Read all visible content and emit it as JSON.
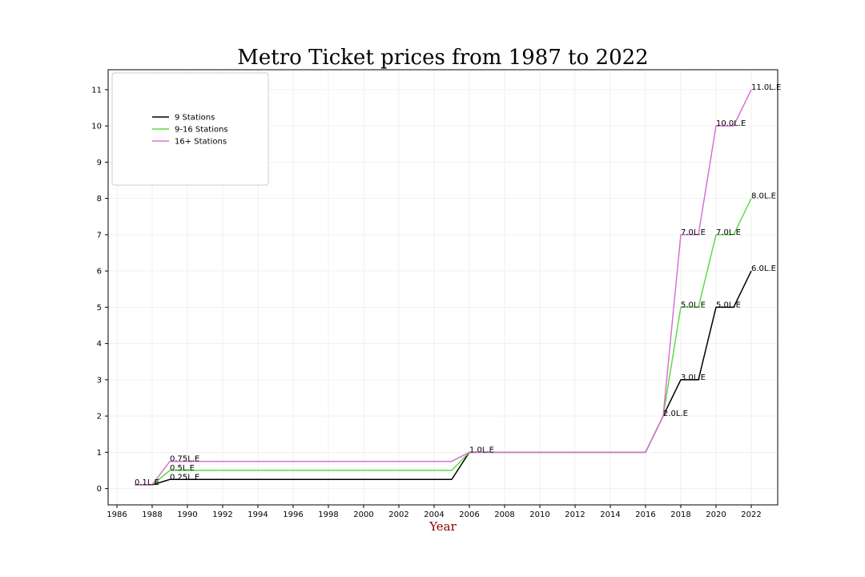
{
  "chart_data": {
    "type": "line",
    "title": "Metro Ticket prices from 1987 to 2022",
    "xlabel": "Year",
    "ylabel": "",
    "xlim": [
      1985.5,
      2023.5
    ],
    "ylim": [
      -0.45,
      11.55
    ],
    "xticks": [
      1986,
      1988,
      1990,
      1992,
      1994,
      1996,
      1998,
      2000,
      2002,
      2004,
      2006,
      2008,
      2010,
      2012,
      2014,
      2016,
      2018,
      2020,
      2022
    ],
    "yticks": [
      0,
      1,
      2,
      3,
      4,
      5,
      6,
      7,
      8,
      9,
      10,
      11
    ],
    "grid": true,
    "legend_position": "top-left",
    "series": [
      {
        "name": "9 Stations",
        "color": "#000000",
        "points": [
          [
            1987,
            0.1
          ],
          [
            1988,
            0.1
          ],
          [
            1989,
            0.25
          ],
          [
            2005,
            0.25
          ],
          [
            2006,
            1
          ],
          [
            2016,
            1
          ],
          [
            2017,
            2
          ],
          [
            2018,
            3
          ],
          [
            2019,
            3
          ],
          [
            2020,
            5
          ],
          [
            2021,
            5
          ],
          [
            2022,
            6
          ]
        ]
      },
      {
        "name": "9-16 Stations",
        "color": "#5cdc46",
        "points": [
          [
            1987,
            0.1
          ],
          [
            1988,
            0.1
          ],
          [
            1989,
            0.5
          ],
          [
            2005,
            0.5
          ],
          [
            2006,
            1
          ],
          [
            2016,
            1
          ],
          [
            2017,
            2
          ],
          [
            2018,
            5
          ],
          [
            2019,
            5
          ],
          [
            2020,
            7
          ],
          [
            2021,
            7
          ],
          [
            2022,
            8
          ]
        ]
      },
      {
        "name": "16+ Stations",
        "color": "#d872d0",
        "points": [
          [
            1987,
            0.1
          ],
          [
            1988,
            0.1
          ],
          [
            1989,
            0.75
          ],
          [
            2005,
            0.75
          ],
          [
            2006,
            1
          ],
          [
            2016,
            1
          ],
          [
            2017,
            2
          ],
          [
            2018,
            7
          ],
          [
            2019,
            7
          ],
          [
            2020,
            10
          ],
          [
            2021,
            10
          ],
          [
            2022,
            11
          ]
        ]
      }
    ],
    "annotations": [
      {
        "text": "0.1L.E",
        "x": 1987,
        "y": 0.1
      },
      {
        "text": "0.25L.E",
        "x": 1989,
        "y": 0.25
      },
      {
        "text": "0.5L.E",
        "x": 1989,
        "y": 0.5
      },
      {
        "text": "0.75L.E",
        "x": 1989,
        "y": 0.75
      },
      {
        "text": "1.0L.E",
        "x": 2006,
        "y": 1
      },
      {
        "text": "2.0L.E",
        "x": 2017,
        "y": 2
      },
      {
        "text": "3.0L.E",
        "x": 2018,
        "y": 3
      },
      {
        "text": "5.0L.E",
        "x": 2018,
        "y": 5
      },
      {
        "text": "7.0L.E",
        "x": 2018,
        "y": 7
      },
      {
        "text": "5.0L.E",
        "x": 2020,
        "y": 5
      },
      {
        "text": "7.0L.E",
        "x": 2020,
        "y": 7
      },
      {
        "text": "10.0L.E",
        "x": 2020,
        "y": 10
      },
      {
        "text": "6.0L.E",
        "x": 2022,
        "y": 6
      },
      {
        "text": "8.0L.E",
        "x": 2022,
        "y": 8
      },
      {
        "text": "11.0L.E",
        "x": 2022,
        "y": 11
      }
    ],
    "colors": {
      "xlabel": "#8b0000"
    }
  }
}
